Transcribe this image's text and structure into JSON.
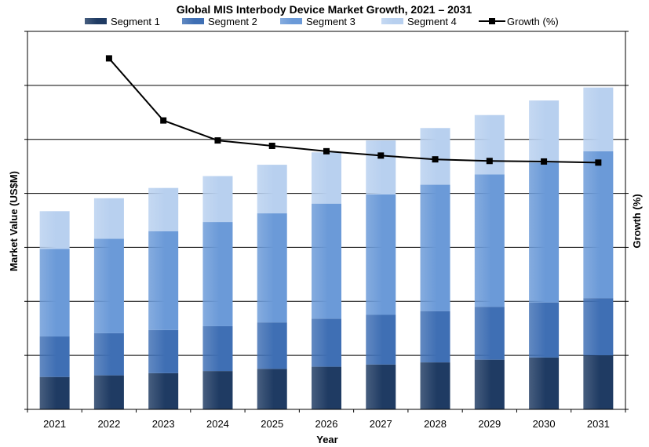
{
  "chart_data": {
    "type": "bar",
    "stacked": true,
    "title": "Global MIS Interbody Device Market Growth, 2021 – 2031",
    "xlabel": "Year",
    "ylabel": "Market Value (US$M)",
    "y2label": "Growth (%)",
    "categories": [
      "2021",
      "2022",
      "2023",
      "2024",
      "2025",
      "2026",
      "2027",
      "2028",
      "2029",
      "2030",
      "2031"
    ],
    "ylim": [
      0,
      7
    ],
    "y2lim": [
      0,
      7
    ],
    "grid": true,
    "legend_position": "top",
    "series": [
      {
        "name": "Segment 1",
        "color": "#1f3b63",
        "values": [
          0.6,
          0.63,
          0.67,
          0.71,
          0.75,
          0.79,
          0.83,
          0.87,
          0.92,
          0.96,
          1.0
        ]
      },
      {
        "name": "Segment 2",
        "color": "#3f6fb4",
        "values": [
          0.75,
          0.78,
          0.8,
          0.83,
          0.86,
          0.89,
          0.92,
          0.95,
          0.98,
          1.02,
          1.06
        ]
      },
      {
        "name": "Segment 3",
        "color": "#6b9ad8",
        "values": [
          1.62,
          1.75,
          1.83,
          1.93,
          2.02,
          2.13,
          2.23,
          2.34,
          2.45,
          2.59,
          2.72
        ]
      },
      {
        "name": "Segment 4",
        "color": "#b8d0ef",
        "values": [
          0.7,
          0.75,
          0.8,
          0.85,
          0.9,
          0.95,
          1.0,
          1.05,
          1.1,
          1.15,
          1.18
        ]
      }
    ],
    "line_series": {
      "name": "Growth (%)",
      "color": "#000000",
      "axis": "secondary",
      "values": [
        null,
        6.5,
        5.35,
        4.98,
        4.88,
        4.78,
        4.7,
        4.63,
        4.6,
        4.59,
        4.57
      ]
    }
  }
}
